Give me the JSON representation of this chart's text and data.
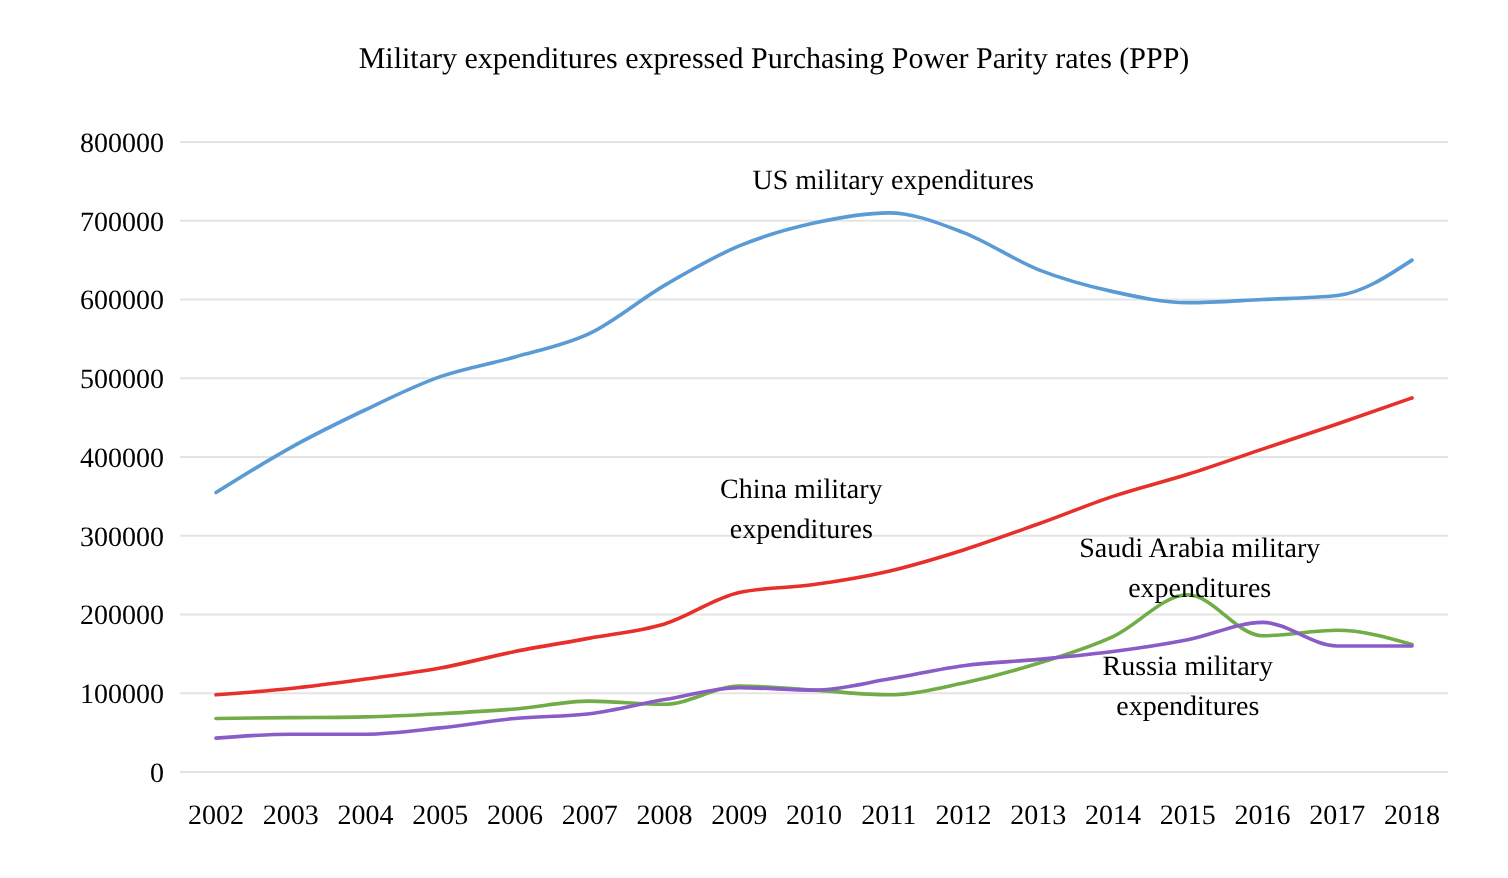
{
  "chart_data": {
    "type": "line",
    "title": "Military expenditures expressed Purchasing Power Parity rates (PPP)",
    "categories": [
      "2002",
      "2003",
      "2004",
      "2005",
      "2006",
      "2007",
      "2008",
      "2009",
      "2010",
      "2011",
      "2012",
      "2013",
      "2014",
      "2015",
      "2016",
      "2017",
      "2018"
    ],
    "series": [
      {
        "name": "US military expenditures",
        "color": "#5b9bd5",
        "values": [
          355000,
          412000,
          460000,
          502000,
          527000,
          557000,
          618000,
          668000,
          697000,
          710000,
          685000,
          638000,
          610000,
          596000,
          600000,
          605000,
          650000
        ]
      },
      {
        "name": "China military expenditures",
        "color": "#e8302a",
        "values": [
          98000,
          106000,
          118000,
          132000,
          153000,
          170000,
          188000,
          228000,
          238000,
          255000,
          282000,
          315000,
          350000,
          378000,
          410000,
          442000,
          475000
        ]
      },
      {
        "name": "Saudi Arabia military expenditures",
        "color": "#70ad47",
        "values": [
          68000,
          69000,
          70000,
          74000,
          80000,
          90000,
          86000,
          109000,
          104000,
          98000,
          113000,
          138000,
          172000,
          225000,
          173000,
          180000,
          162000
        ]
      },
      {
        "name": "Russia military expenditures",
        "color": "#8a5cc7",
        "values": [
          43000,
          48000,
          48000,
          56000,
          68000,
          74000,
          92000,
          107000,
          104000,
          118000,
          135000,
          143000,
          153000,
          168000,
          190000,
          160000,
          160000
        ]
      }
    ],
    "ylim": [
      0,
      800000
    ],
    "yticks": [
      0,
      100000,
      200000,
      300000,
      400000,
      500000,
      600000,
      700000,
      800000
    ],
    "grid": "y",
    "legend": false,
    "marker": "none",
    "line_style": "solid"
  }
}
